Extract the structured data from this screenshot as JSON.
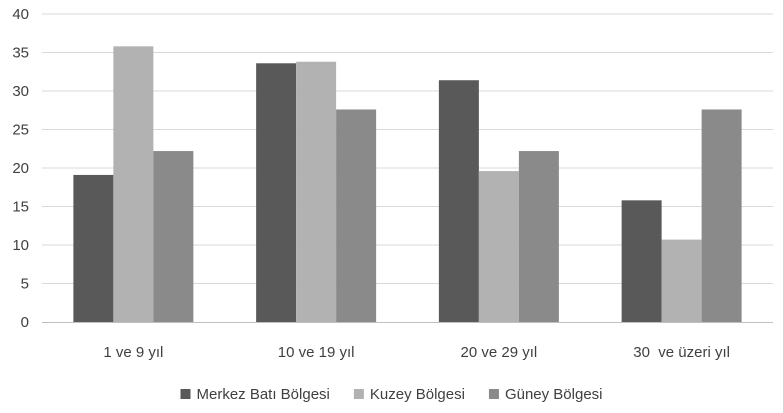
{
  "chart_data": {
    "type": "bar",
    "categories": [
      "1 ve 9 yıl",
      "10 ve 19 yıl",
      "20 ve 29 yıl",
      "30  ve üzeri yıl"
    ],
    "series": [
      {
        "name": "Merkez Batı Bölgesi",
        "color": "#595959",
        "values": [
          19.1,
          33.6,
          31.4,
          15.8
        ]
      },
      {
        "name": "Kuzey Bölgesi",
        "color": "#b2b2b2",
        "values": [
          35.8,
          33.8,
          19.6,
          10.7
        ]
      },
      {
        "name": "Güney Bölgesi",
        "color": "#8a8a8a",
        "values": [
          22.2,
          27.6,
          22.2,
          27.6
        ]
      }
    ],
    "ylim": [
      0,
      40
    ],
    "yticks": [
      0,
      5,
      10,
      15,
      20,
      25,
      30,
      35,
      40
    ],
    "grid": true,
    "legend": "bottom"
  }
}
